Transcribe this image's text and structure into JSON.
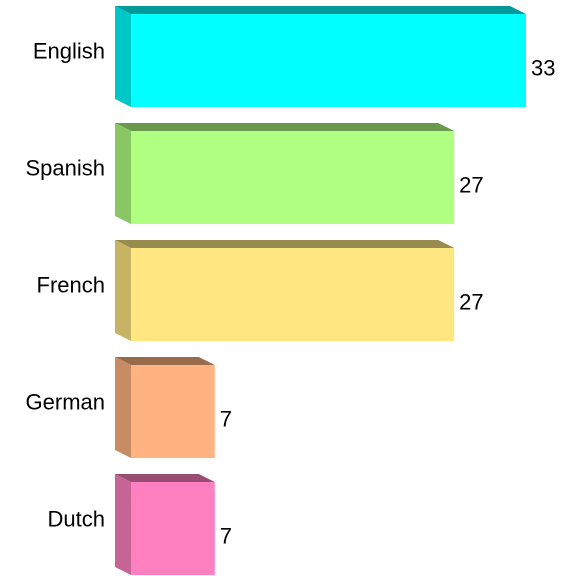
{
  "chart_data": {
    "type": "bar3d",
    "orientation": "horizontal",
    "categories": [
      "English",
      "Spanish",
      "French",
      "German",
      "Dutch"
    ],
    "values": [
      33,
      27,
      27,
      7,
      7
    ],
    "colors": [
      "#00ffff",
      "#b0ff80",
      "#ffe680",
      "#ffb380",
      "#ff80c0"
    ]
  }
}
